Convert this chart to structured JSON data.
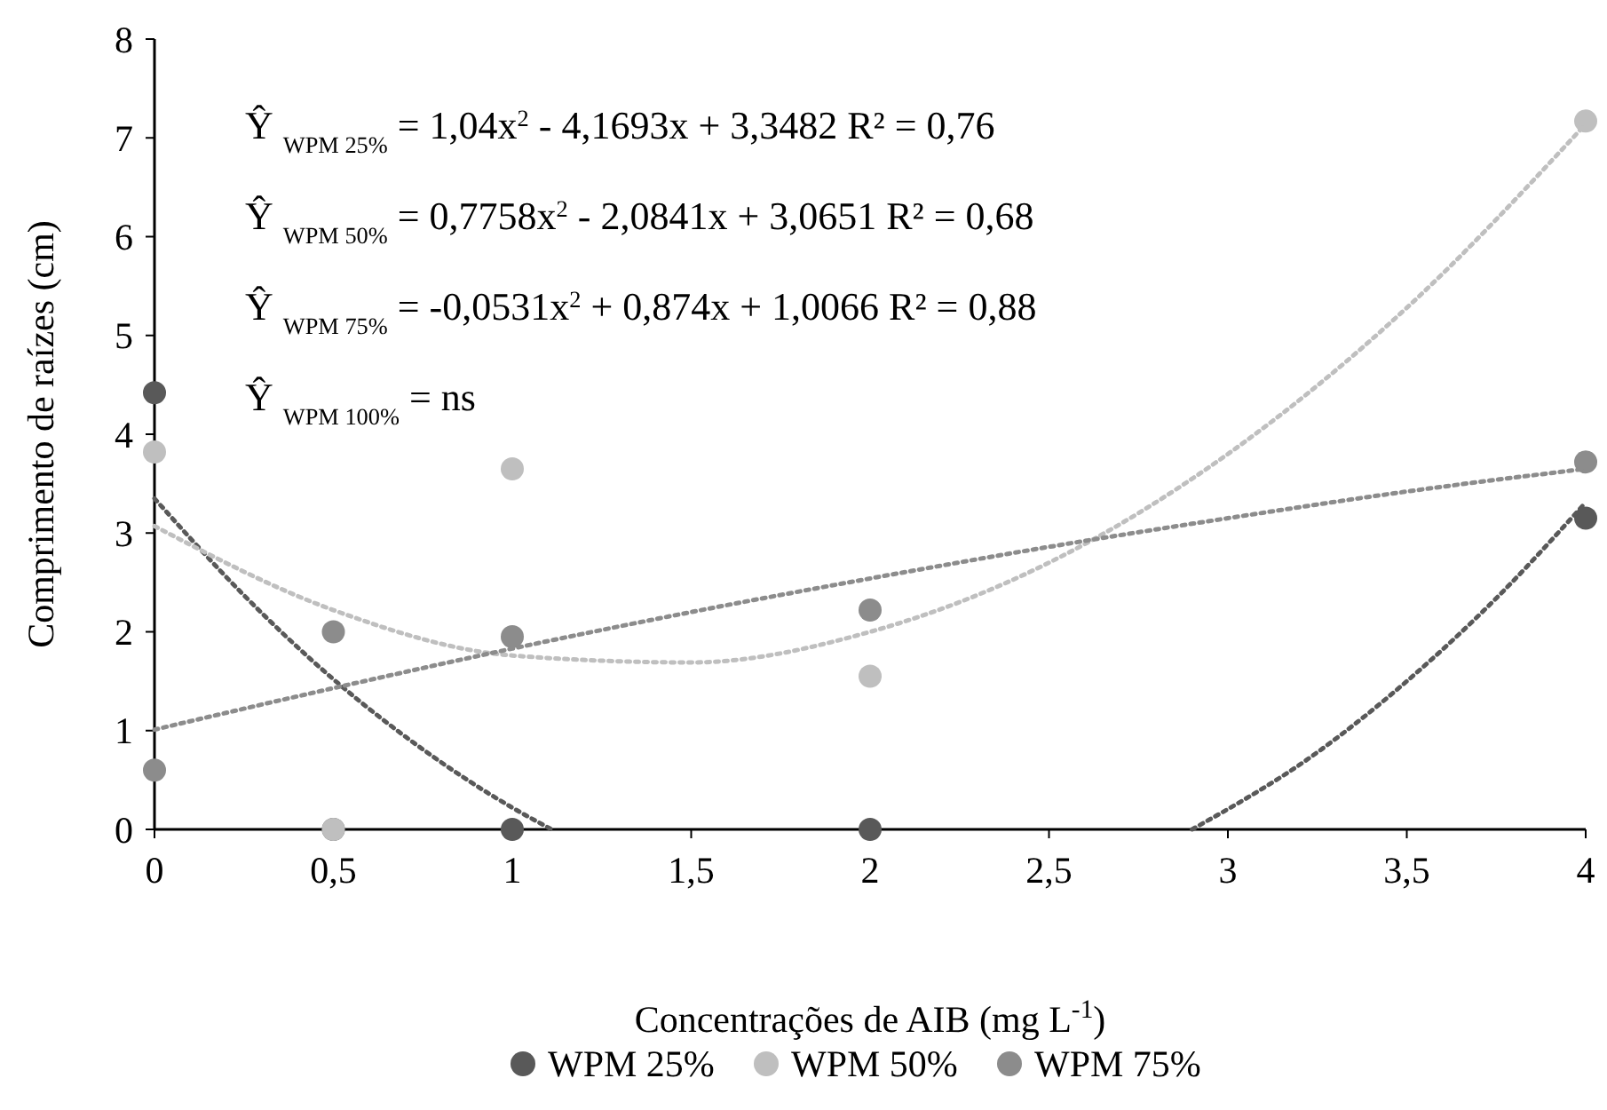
{
  "chart_data": {
    "type": "scatter",
    "xlabel": "Concentrações de AIB (mg L$^{-1}$)",
    "ylabel": "Comprimento de raízes (cm)",
    "xlim": [
      0,
      4
    ],
    "xticks": [
      0,
      {
        "value": 0.5,
        "label": "0,5"
      },
      1,
      {
        "value": 1.5,
        "label": "1,5"
      },
      2,
      {
        "value": 2.5,
        "label": "2,5"
      },
      3,
      {
        "value": 3.5,
        "label": "3,5"
      },
      4
    ],
    "ylim": [
      0,
      8
    ],
    "yticks": [
      0,
      1,
      2,
      3,
      4,
      5,
      6,
      7,
      8
    ],
    "grid": false,
    "legend": "bottom",
    "marker": "circle",
    "x": [
      0,
      0.5,
      1,
      2,
      4
    ],
    "series": [
      {
        "name": "WPM 25%",
        "color": "#595959",
        "values": [
          4.42,
          0,
          0,
          0,
          3.15
        ]
      },
      {
        "name": "WPM 50%",
        "color": "#bfbfbf",
        "values": [
          3.82,
          0,
          3.65,
          1.55,
          7.17
        ]
      },
      {
        "name": "WPM 75%",
        "color": "#8c8c8c",
        "values": [
          0.6,
          2.0,
          1.95,
          2.22,
          3.72
        ]
      },
      {
        "type": "line",
        "color": "#595959",
        "line_style": "dotted",
        "marker": "none",
        "x": [
          0,
          0.25,
          0.5,
          0.75,
          1,
          1.11
        ],
        "values": [
          3.35,
          2.37,
          1.52,
          0.81,
          0.22,
          0
        ]
      },
      {
        "type": "line",
        "color": "#595959",
        "line_style": "dotted",
        "marker": "none",
        "x": [
          2.9,
          3.25,
          3.5,
          3.75,
          4
        ],
        "values": [
          0,
          0.78,
          1.5,
          2.34,
          3.31
        ]
      },
      {
        "type": "line",
        "color": "#bfbfbf",
        "line_style": "dotted",
        "marker": "none",
        "x": [
          0,
          0.5,
          1,
          1.5,
          2,
          2.5,
          3,
          3.5,
          4
        ],
        "values": [
          3.07,
          2.22,
          1.76,
          1.69,
          2.0,
          2.7,
          3.8,
          5.28,
          7.14
        ]
      },
      {
        "type": "line",
        "color": "#8c8c8c",
        "line_style": "dotted",
        "marker": "none",
        "x": [
          0,
          0.5,
          1,
          1.5,
          2,
          2.5,
          3,
          3.5,
          4
        ],
        "values": [
          1.01,
          1.43,
          1.83,
          2.2,
          2.54,
          2.86,
          3.15,
          3.42,
          3.65
        ]
      }
    ],
    "annotations": [
      "Ŷ $_{WPM 25%}$ = 1,04x$^{2}$ - 4,1693x + 3,3482 R² = 0,76",
      "Ŷ $_{WPM 50%}$ = 0,7758x$^{2}$ - 2,0841x + 3,0651 R² = 0,68",
      "Ŷ $_{WPM 75%}$ = -0,0531x$^{2}$ + 0,874x + 1,0066 R² = 0,88",
      "Ŷ $_{WPM 100%}$ = ns"
    ]
  }
}
